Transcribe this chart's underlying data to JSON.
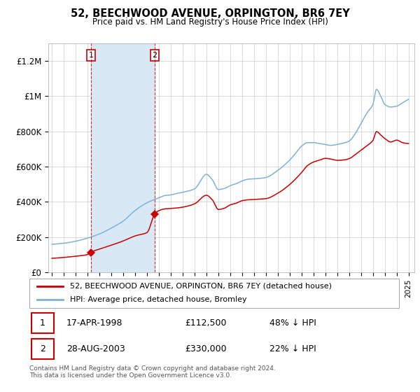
{
  "title": "52, BEECHWOOD AVENUE, ORPINGTON, BR6 7EY",
  "subtitle": "Price paid vs. HM Land Registry's House Price Index (HPI)",
  "legend_line1": "52, BEECHWOOD AVENUE, ORPINGTON, BR6 7EY (detached house)",
  "legend_line2": "HPI: Average price, detached house, Bromley",
  "table_row1_num": "1",
  "table_row1_date": "17-APR-1998",
  "table_row1_price": "£112,500",
  "table_row1_hpi": "48% ↓ HPI",
  "table_row2_num": "2",
  "table_row2_date": "28-AUG-2003",
  "table_row2_price": "£330,000",
  "table_row2_hpi": "22% ↓ HPI",
  "footnote": "Contains HM Land Registry data © Crown copyright and database right 2024.\nThis data is licensed under the Open Government Licence v3.0.",
  "red_line_color": "#cc0000",
  "blue_line_color": "#7fb2d5",
  "background_color": "#ffffff",
  "grid_color": "#cccccc",
  "shade_color": "#d8e8f5",
  "transaction1_x": 1998.29,
  "transaction1_y": 112500,
  "transaction2_x": 2003.65,
  "transaction2_y": 330000,
  "vline1_x": 1998.29,
  "vline2_x": 2003.65,
  "shade_start": 1998.29,
  "shade_end": 2003.65,
  "ylim_max": 1300000,
  "xlim_start": 1994.7,
  "xlim_end": 2025.5,
  "yticks": [
    0,
    200000,
    400000,
    600000,
    800000,
    1000000,
    1200000
  ],
  "ytick_labels": [
    "£0",
    "£200K",
    "£400K",
    "£600K",
    "£800K",
    "£1M",
    "£1.2M"
  ]
}
